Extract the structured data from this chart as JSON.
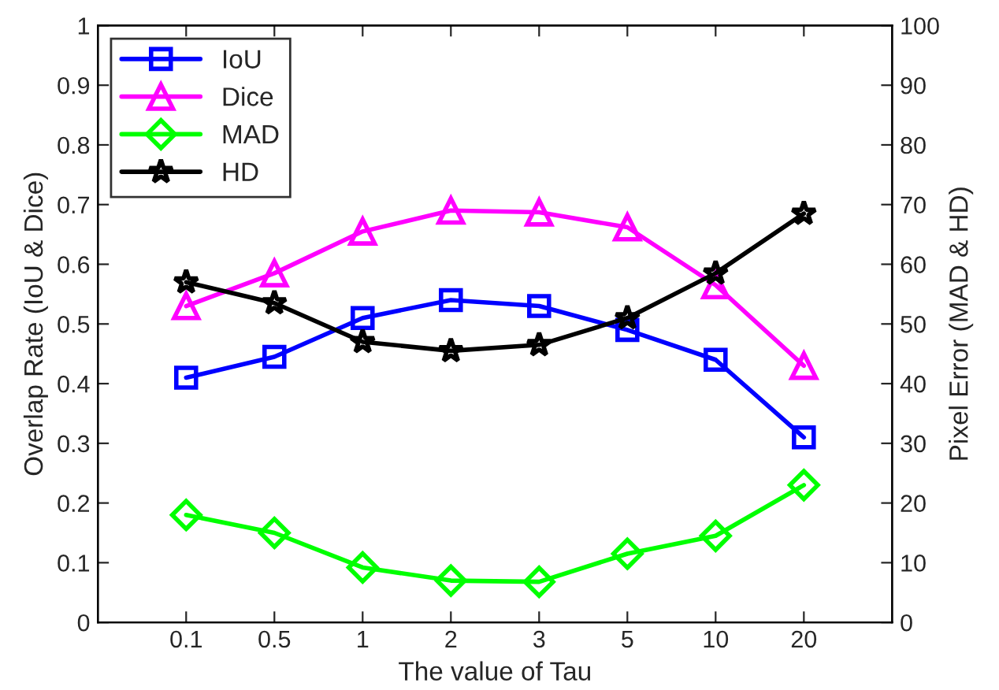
{
  "chart_data": {
    "type": "line",
    "xlabel": "The value of Tau",
    "ylabel": "Overlap Rate (IoU & Dice)",
    "y2label": "Pixel Error (MAD & HD)",
    "categories": [
      "0.1",
      "0.5",
      "1",
      "2",
      "3",
      "5",
      "10",
      "20"
    ],
    "ylim": [
      0,
      1
    ],
    "yticks": [
      0,
      0.1,
      0.2,
      0.3,
      0.4,
      0.5,
      0.6,
      0.7,
      0.8,
      0.9,
      1
    ],
    "y2lim": [
      0,
      100
    ],
    "y2ticks": [
      0,
      10,
      20,
      30,
      40,
      50,
      60,
      70,
      80,
      90,
      100
    ],
    "legend": "top left",
    "grid": false,
    "line_style": "solid",
    "series": [
      {
        "name": "IoU",
        "color": "#0000ff",
        "marker": "square",
        "values": [
          0.41,
          0.445,
          0.51,
          0.54,
          0.53,
          0.49,
          0.44,
          0.31
        ]
      },
      {
        "name": "Dice",
        "color": "#ff00ff",
        "marker": "triangle",
        "values": [
          0.53,
          0.585,
          0.655,
          0.69,
          0.687,
          0.662,
          0.565,
          0.43
        ]
      },
      {
        "name": "MAD",
        "color": "#00ff00",
        "marker": "diamond",
        "axis": "y2",
        "values": [
          18,
          15,
          9.2,
          7,
          6.8,
          11.5,
          14.5,
          23
        ]
      },
      {
        "name": "HD",
        "color": "#000000",
        "marker": "star",
        "axis": "y2",
        "values": [
          57,
          53.5,
          47,
          45.5,
          46.5,
          51,
          58.5,
          68.5
        ]
      }
    ]
  }
}
